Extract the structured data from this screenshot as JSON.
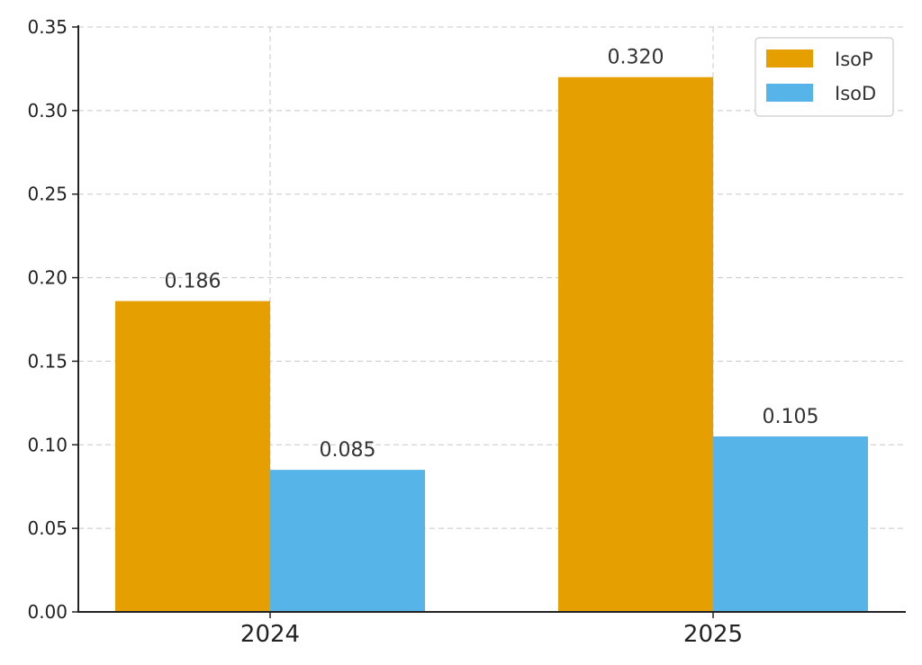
{
  "chart_data": {
    "type": "bar",
    "categories": [
      "2024",
      "2025"
    ],
    "series": [
      {
        "name": "IsoP",
        "values": [
          0.186,
          0.32
        ],
        "color": "#E69F00"
      },
      {
        "name": "IsoD",
        "values": [
          0.085,
          0.105
        ],
        "color": "#56B4E9"
      }
    ],
    "data_labels": [
      [
        "0.186",
        "0.320"
      ],
      [
        "0.085",
        "0.105"
      ]
    ],
    "yticks": [
      "0.00",
      "0.05",
      "0.10",
      "0.15",
      "0.20",
      "0.25",
      "0.30",
      "0.35"
    ],
    "ylim": [
      0,
      0.35
    ],
    "title": "",
    "xlabel": "",
    "ylabel": "",
    "grid": true,
    "legend_position": "top-right"
  }
}
